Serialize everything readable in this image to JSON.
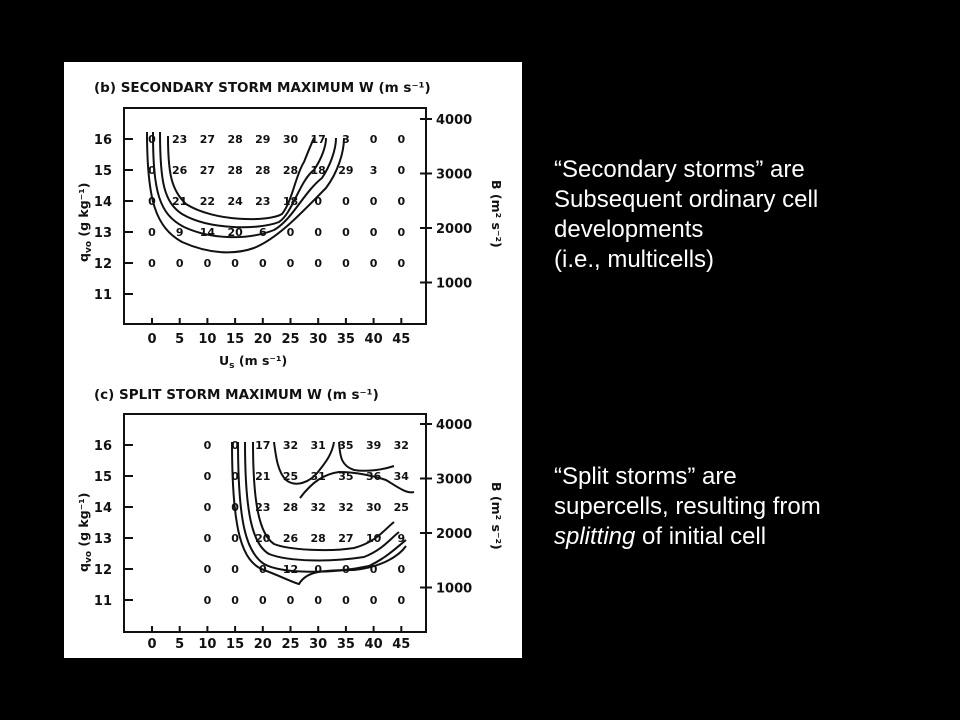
{
  "notes": {
    "secondary": {
      "line1": "“Secondary storms” are",
      "line2": "Subsequent ordinary cell",
      "line3": "developments",
      "line4": "(i.e., multicells)"
    },
    "split": {
      "line1": "“Split storms” are",
      "line2": "supercells, resulting from",
      "line3_italic": "splitting",
      "line3_rest": " of initial cell"
    }
  },
  "chart_data": [
    {
      "type": "heatmap",
      "title": "(b) SECONDARY STORM MAXIMUM W (m s⁻¹)",
      "xlabel": "U",
      "xlabel_sub": "s",
      "xlabel_units": "(m s⁻¹)",
      "ylabel": "q",
      "ylabel_sub": "vo",
      "ylabel_units": "(g kg⁻¹)",
      "y2label": "B (m² s⁻²)",
      "x": [
        0,
        5,
        10,
        15,
        20,
        25,
        30,
        35,
        40,
        45
      ],
      "y": [
        16,
        15,
        14,
        13,
        12
      ],
      "y_ticks": [
        16,
        15,
        14,
        13,
        12,
        11
      ],
      "y2_ticks": [
        4000,
        3000,
        2000,
        1000
      ],
      "values": [
        [
          0,
          23,
          27,
          28,
          29,
          30,
          17,
          3,
          0,
          0
        ],
        [
          0,
          26,
          27,
          28,
          28,
          28,
          18,
          29,
          3,
          0
        ],
        [
          0,
          21,
          22,
          24,
          23,
          18,
          0,
          0,
          0,
          0
        ],
        [
          0,
          9,
          14,
          20,
          6,
          0,
          0,
          0,
          0,
          0
        ],
        [
          0,
          0,
          0,
          0,
          0,
          0,
          0,
          0,
          0,
          0
        ]
      ]
    },
    {
      "type": "heatmap",
      "title": "(c) SPLIT STORM MAXIMUM W (m s⁻¹)",
      "xlabel": "",
      "ylabel": "q",
      "ylabel_sub": "vo",
      "ylabel_units": "(g kg⁻¹)",
      "y2label": "B (m² s⁻²)",
      "x": [
        0,
        5,
        10,
        15,
        20,
        25,
        30,
        35,
        40,
        45
      ],
      "y": [
        16,
        15,
        14,
        13,
        12,
        11
      ],
      "y_ticks": [
        16,
        15,
        14,
        13,
        12,
        11
      ],
      "y2_ticks": [
        4000,
        3000,
        2000,
        1000
      ],
      "values": [
        [
          null,
          null,
          0,
          0,
          17,
          32,
          31,
          35,
          39,
          32
        ],
        [
          null,
          null,
          0,
          0,
          21,
          25,
          31,
          35,
          36,
          34
        ],
        [
          null,
          null,
          0,
          0,
          23,
          28,
          32,
          32,
          30,
          25
        ],
        [
          null,
          null,
          0,
          0,
          20,
          26,
          28,
          27,
          10,
          9
        ],
        [
          null,
          null,
          0,
          0,
          0,
          12,
          0,
          0,
          0,
          0
        ],
        [
          null,
          null,
          0,
          0,
          0,
          0,
          0,
          0,
          0,
          0
        ]
      ]
    }
  ]
}
